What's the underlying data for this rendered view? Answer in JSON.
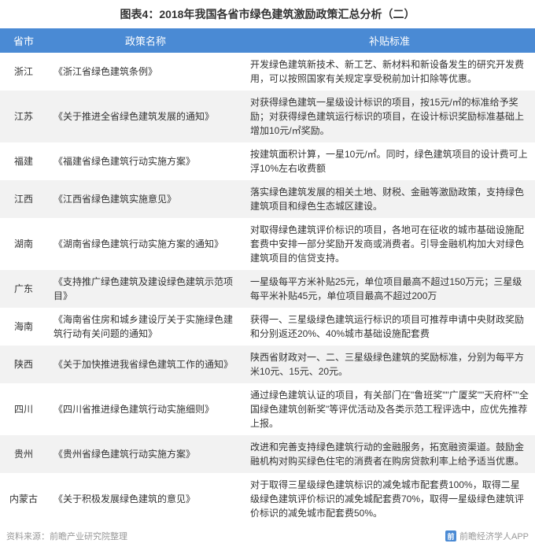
{
  "title": "图表4：2018年我国各省市绿色建筑激励政策汇总分析（二）",
  "columns": {
    "province": "省市",
    "policy": "政策名称",
    "subsidy": "补贴标准"
  },
  "rows": [
    {
      "province": "浙江",
      "policy": "《浙江省绿色建筑条例》",
      "subsidy": "开发绿色建筑新技术、新工艺、新材料和新设备发生的研究开发费用，可以按照国家有关规定享受税前加计扣除等优惠。"
    },
    {
      "province": "江苏",
      "policy": "《关于推进全省绿色建筑发展的通知》",
      "subsidy": "对获得绿色建筑一星级设计标识的项目，按15元/㎡的标准给予奖励；对获得绿色建筑运行标识的项目，在设计标识奖励标准基础上增加10元/㎡奖励。"
    },
    {
      "province": "福建",
      "policy": "《福建省绿色建筑行动实施方案》",
      "subsidy": "按建筑面积计算，一星10元/㎡。同时，绿色建筑项目的设计费可上浮10%左右收费额"
    },
    {
      "province": "江西",
      "policy": "《江西省绿色建筑实施意见》",
      "subsidy": "落实绿色建筑发展的相关土地、财税、金融等激励政策，支持绿色建筑项目和绿色生态城区建设。"
    },
    {
      "province": "湖南",
      "policy": "《湖南省绿色建筑行动实施方案的通知》",
      "subsidy": "对取得绿色建筑评价标识的项目，各地可在征收的城市基础设施配套费中安排一部分奖励开发商或消费者。引导金融机构加大对绿色建筑项目的信贷支持。"
    },
    {
      "province": "广东",
      "policy": "《支持推广绿色建筑及建设绿色建筑示范项目》",
      "subsidy": "一星级每平方米补贴25元，单位项目最高不超过150万元；三星级每平米补贴45元，单位项目最高不超过200万"
    },
    {
      "province": "海南",
      "policy": "《海南省住房和城乡建设厅关于实施绿色建筑行动有关问题的通知》",
      "subsidy": "获得一、三星级绿色建筑运行标识的项目可推荐申请中央财政奖励和分别返还20%、40%城市基础设施配套费"
    },
    {
      "province": "陕西",
      "policy": "《关于加快推进我省绿色建筑工作的通知》",
      "subsidy": "陕西省财政对一、二、三星级绿色建筑的奖励标准，分别为每平方米10元、15元、20元。"
    },
    {
      "province": "四川",
      "policy": "《四川省推进绿色建筑行动实施细则》",
      "subsidy": "通过绿色建筑认证的项目，有关部门在\"鲁班奖\"\"广厦奖\"\"天府杯\"\"全国绿色建筑创新奖\"等评优活动及各类示范工程评选中，应优先推荐上报。"
    },
    {
      "province": "贵州",
      "policy": "《贵州省绿色建筑行动实施方案》",
      "subsidy": "改进和完善支持绿色建筑行动的金融服务，拓宽融资渠道。鼓励金融机构对购买绿色住宅的消费者在购房贷款利率上给予适当优惠。"
    },
    {
      "province": "内蒙古",
      "policy": "《关于积极发展绿色建筑的意见》",
      "subsidy": "对于取得三星级绿色建筑标识的减免城市配套费100%，取得二星级绿色建筑评价标识的减免城配套费70%，取得一星级绿色建筑评价标识的减免城市配套费50%。"
    }
  ],
  "footer": {
    "source": "资料来源：前瞻产业研究院整理",
    "brand": "前瞻经济学人APP",
    "iconText": "前"
  },
  "colors": {
    "headerBg": "#4a8ad4",
    "headerText": "#ffffff",
    "rowOdd": "#ffffff",
    "rowEven": "#f2f2f2",
    "text": "#333333",
    "footerText": "#999999"
  }
}
